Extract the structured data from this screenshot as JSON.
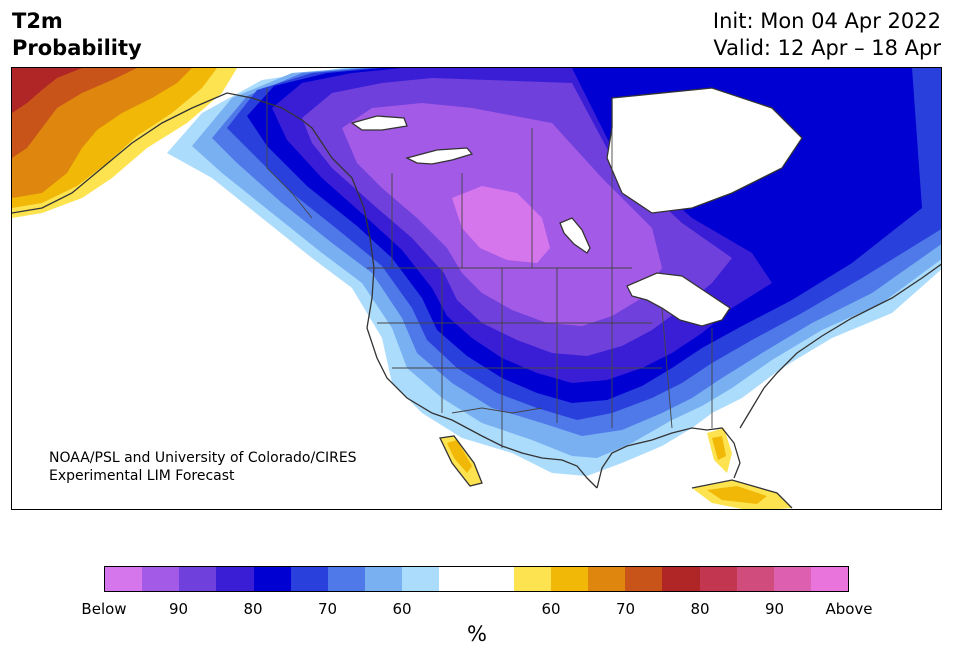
{
  "title": {
    "variable": "T2m",
    "type": "Probability"
  },
  "dates": {
    "init": "Init: Mon 04 Apr 2022",
    "valid": "Valid: 12 Apr – 18 Apr"
  },
  "credit": {
    "line1": "NOAA/PSL and University of Colorado/CIRES",
    "line2": "Experimental LIM Forecast"
  },
  "map": {
    "region": "North America",
    "colors": {
      "below_100": "#d676ec",
      "below_90": "#a35ae6",
      "below_85": "#7040dc",
      "below_80": "#3a1ed6",
      "below_75": "#0000d2",
      "below_70": "#2a40dd",
      "below_65": "#4f78e8",
      "below_60": "#78b0f2",
      "below_55": "#acdcfc",
      "neutral": "#ffffff",
      "above_55": "#fde34f",
      "above_60": "#f1b807",
      "above_65": "#de860d",
      "above_70": "#c9541a",
      "above_80": "#b02525",
      "coastline": "#333333"
    }
  },
  "colorbar": {
    "colors": [
      "#d676ec",
      "#a35ae6",
      "#7040dc",
      "#3a1ed6",
      "#0000d2",
      "#2a40dd",
      "#4f78e8",
      "#78b0f2",
      "#acdcfc",
      "#ffffff",
      "#ffffff",
      "#fde34f",
      "#f1b807",
      "#de860d",
      "#c9541a",
      "#b02525",
      "#c33650",
      "#cf4c7c",
      "#dd60b0",
      "#e874dc"
    ],
    "tick_labels": [
      "Below",
      "90",
      "80",
      "70",
      "60",
      "60",
      "70",
      "80",
      "90",
      "Above"
    ],
    "unit": "%"
  }
}
